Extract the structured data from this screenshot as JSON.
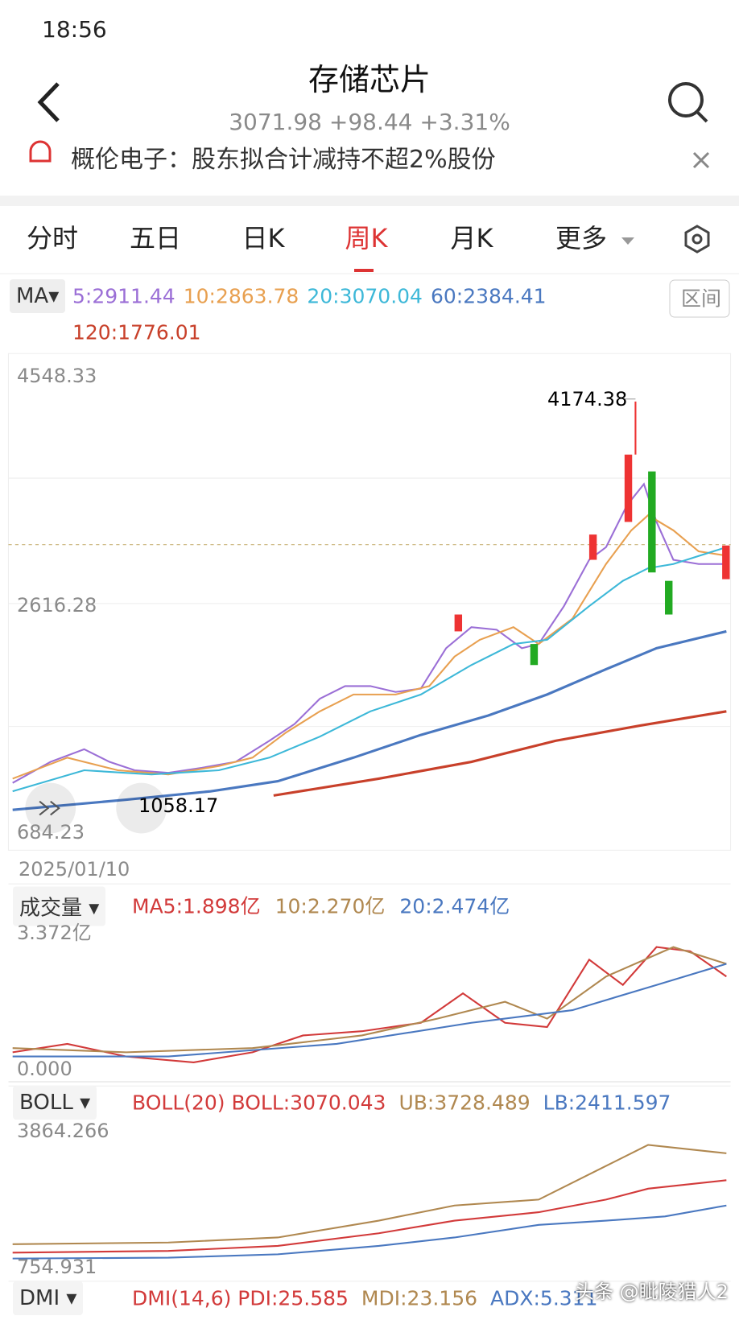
{
  "status_bar": {
    "time": "18:56"
  },
  "header": {
    "title": "存储芯片",
    "quote": "3071.98 +98.44 +3.31%"
  },
  "notice": {
    "text": "概伦电子：股东拟合计减持不超2%股份"
  },
  "tabs": [
    "分时",
    "五日",
    "日K",
    "周K",
    "月K",
    "更多"
  ],
  "ma_legend": {
    "selector": "MA",
    "range_button": "区间",
    "items": [
      {
        "label": "5:2911.44",
        "color": "#9b6fd6"
      },
      {
        "label": "10:2863.78",
        "color": "#e8a050"
      },
      {
        "label": "20:3070.04",
        "color": "#3db8d8"
      },
      {
        "label": "60:2384.41",
        "color": "#4a78c0"
      },
      {
        "label": "120:1776.01",
        "color": "#c8402a"
      }
    ]
  },
  "price_chart": {
    "axis_labels": [
      "4548.33",
      "2616.28",
      "684.23"
    ],
    "high_label": "4174.38",
    "low_label": "1058.17",
    "date": "2025/01/10"
  },
  "volume": {
    "selector": "成交量",
    "items": [
      {
        "label": "MA5:1.898亿",
        "color": "#d23a3a"
      },
      {
        "label": "10:2.270亿",
        "color": "#b08850"
      },
      {
        "label": "20:2.474亿",
        "color": "#4a78c0"
      }
    ],
    "axis_labels": [
      "3.372亿",
      "0.000"
    ]
  },
  "boll": {
    "selector": "BOLL",
    "items": [
      {
        "label": "BOLL(20) BOLL:3070.043",
        "color": "#d23a3a"
      },
      {
        "label": "UB:3728.489",
        "color": "#b08850"
      },
      {
        "label": "LB:2411.597",
        "color": "#4a78c0"
      }
    ],
    "axis_labels": [
      "3864.266",
      "754.931"
    ]
  },
  "dmi": {
    "selector": "DMI",
    "items": [
      {
        "label": "DMI(14,6) PDI:25.585",
        "color": "#d23a3a"
      },
      {
        "label": "MDI:23.156",
        "color": "#b08850"
      },
      {
        "label": "ADX:5.311",
        "color": "#4a78c0"
      }
    ]
  },
  "watermark": "头条 @眦陵猎人2"
}
